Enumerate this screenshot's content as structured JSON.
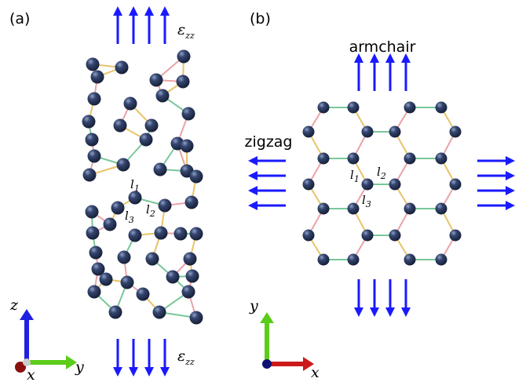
{
  "panel_a": {
    "label": "(a)",
    "strain_top": {
      "base": "ε",
      "sub": "zz"
    },
    "strain_bottom": {
      "base": "ε",
      "sub": "zz"
    },
    "bond_labels": [
      {
        "base": "l",
        "sub": "1"
      },
      {
        "base": "l",
        "sub": "2"
      },
      {
        "base": "l",
        "sub": "3"
      }
    ],
    "axes": {
      "z": "z",
      "y": "y",
      "x": "x"
    }
  },
  "panel_b": {
    "label": "(b)",
    "armchair": "armchair",
    "zigzag": "zigzag",
    "bond_labels": [
      {
        "base": "l",
        "sub": "1"
      },
      {
        "base": "l",
        "sub": "2"
      },
      {
        "base": "l",
        "sub": "3"
      }
    ],
    "axes": {
      "y": "y",
      "x": "x"
    }
  }
}
